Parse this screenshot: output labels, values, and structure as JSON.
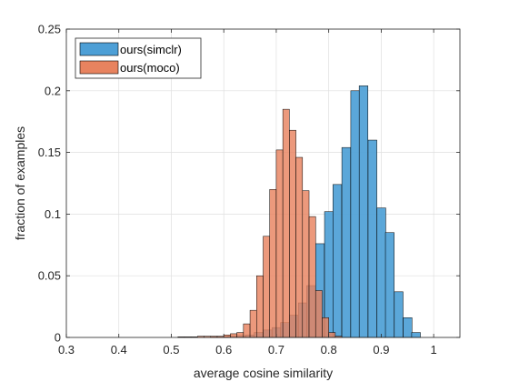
{
  "chart_data": {
    "type": "bar",
    "subtype": "overlapping-histogram",
    "title": "",
    "xlabel": "average cosine similarity",
    "ylabel": "fraction of examples",
    "xlim": [
      0.3,
      1.05
    ],
    "ylim": [
      0,
      0.25
    ],
    "xticks": [
      "0.3",
      "0.4",
      "0.5",
      "0.6",
      "0.7",
      "0.8",
      "0.9",
      "1"
    ],
    "yticks": [
      "0",
      "0.05",
      "0.1",
      "0.15",
      "0.2",
      "0.25"
    ],
    "grid": true,
    "legend_position": "top-left",
    "series": [
      {
        "name": "ours(simclr)",
        "color": "#4d9fd6",
        "bin_width": 0.0167,
        "bin_starts": [
          0.575,
          0.592,
          0.608,
          0.625,
          0.642,
          0.658,
          0.675,
          0.692,
          0.708,
          0.725,
          0.742,
          0.758,
          0.775,
          0.792,
          0.808,
          0.825,
          0.842,
          0.858,
          0.875,
          0.892,
          0.908,
          0.925,
          0.942
        ],
        "values": [
          0.0005,
          0.0005,
          0.001,
          0.0015,
          0.002,
          0.004,
          0.006,
          0.008,
          0.012,
          0.018,
          0.028,
          0.042,
          0.076,
          0.102,
          0.124,
          0.154,
          0.2,
          0.204,
          0.16,
          0.105,
          0.085,
          0.037,
          0.016
        ],
        "extra_bin": {
          "start": 0.958,
          "value": 0.004
        }
      },
      {
        "name": "ours(moco)",
        "color": "#e8835f",
        "bin_width": 0.0125,
        "bin_starts": [
          0.5125,
          0.525,
          0.5375,
          0.55,
          0.5625,
          0.575,
          0.5875,
          0.6,
          0.6125,
          0.625,
          0.6375,
          0.65,
          0.6625,
          0.675,
          0.6875,
          0.7,
          0.7125,
          0.725,
          0.7375,
          0.75,
          0.7625,
          0.775,
          0.7875,
          0.8
        ],
        "values": [
          0.0005,
          0.0005,
          0.0005,
          0.001,
          0.001,
          0.001,
          0.001,
          0.002,
          0.003,
          0.004,
          0.011,
          0.022,
          0.05,
          0.082,
          0.12,
          0.152,
          0.185,
          0.168,
          0.146,
          0.119,
          0.098,
          0.038,
          0.016,
          0.004
        ],
        "extra_bin": {
          "start": 0.8125,
          "value": 0.001
        }
      }
    ]
  }
}
